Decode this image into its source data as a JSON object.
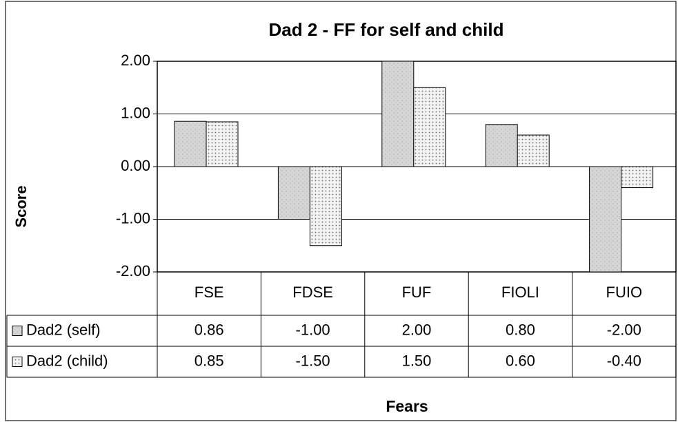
{
  "chart_data": {
    "type": "bar",
    "title": "Dad 2 - FF for self and child",
    "y_label": "Score",
    "x_label": "Fears",
    "categories": [
      "FSE",
      "FDSE",
      "FUF",
      "FIOLI",
      "FUIO"
    ],
    "series": [
      {
        "name": "Dad2 (self)",
        "color": "#cfcfcf",
        "values": [
          0.86,
          -1,
          2,
          0.8,
          -2
        ],
        "value_labels": [
          "0.86",
          "-1.00",
          "2.00",
          "0.80",
          "-2.00"
        ]
      },
      {
        "name": "Dad2 (child)",
        "color": "#ececec",
        "values": [
          0.85,
          -1.5,
          1.5,
          0.6,
          -0.4
        ],
        "value_labels": [
          "0.85",
          "-1.50",
          "1.50",
          "0.60",
          "-0.40"
        ]
      }
    ],
    "ylim": [
      -2,
      2
    ],
    "yticks": [
      {
        "value": -2,
        "label": "-2.00"
      },
      {
        "value": -1,
        "label": "-1.00"
      },
      {
        "value": 0,
        "label": "0.00"
      },
      {
        "value": 1,
        "label": "1.00"
      },
      {
        "value": 2,
        "label": "2.00"
      }
    ],
    "grid": true
  }
}
